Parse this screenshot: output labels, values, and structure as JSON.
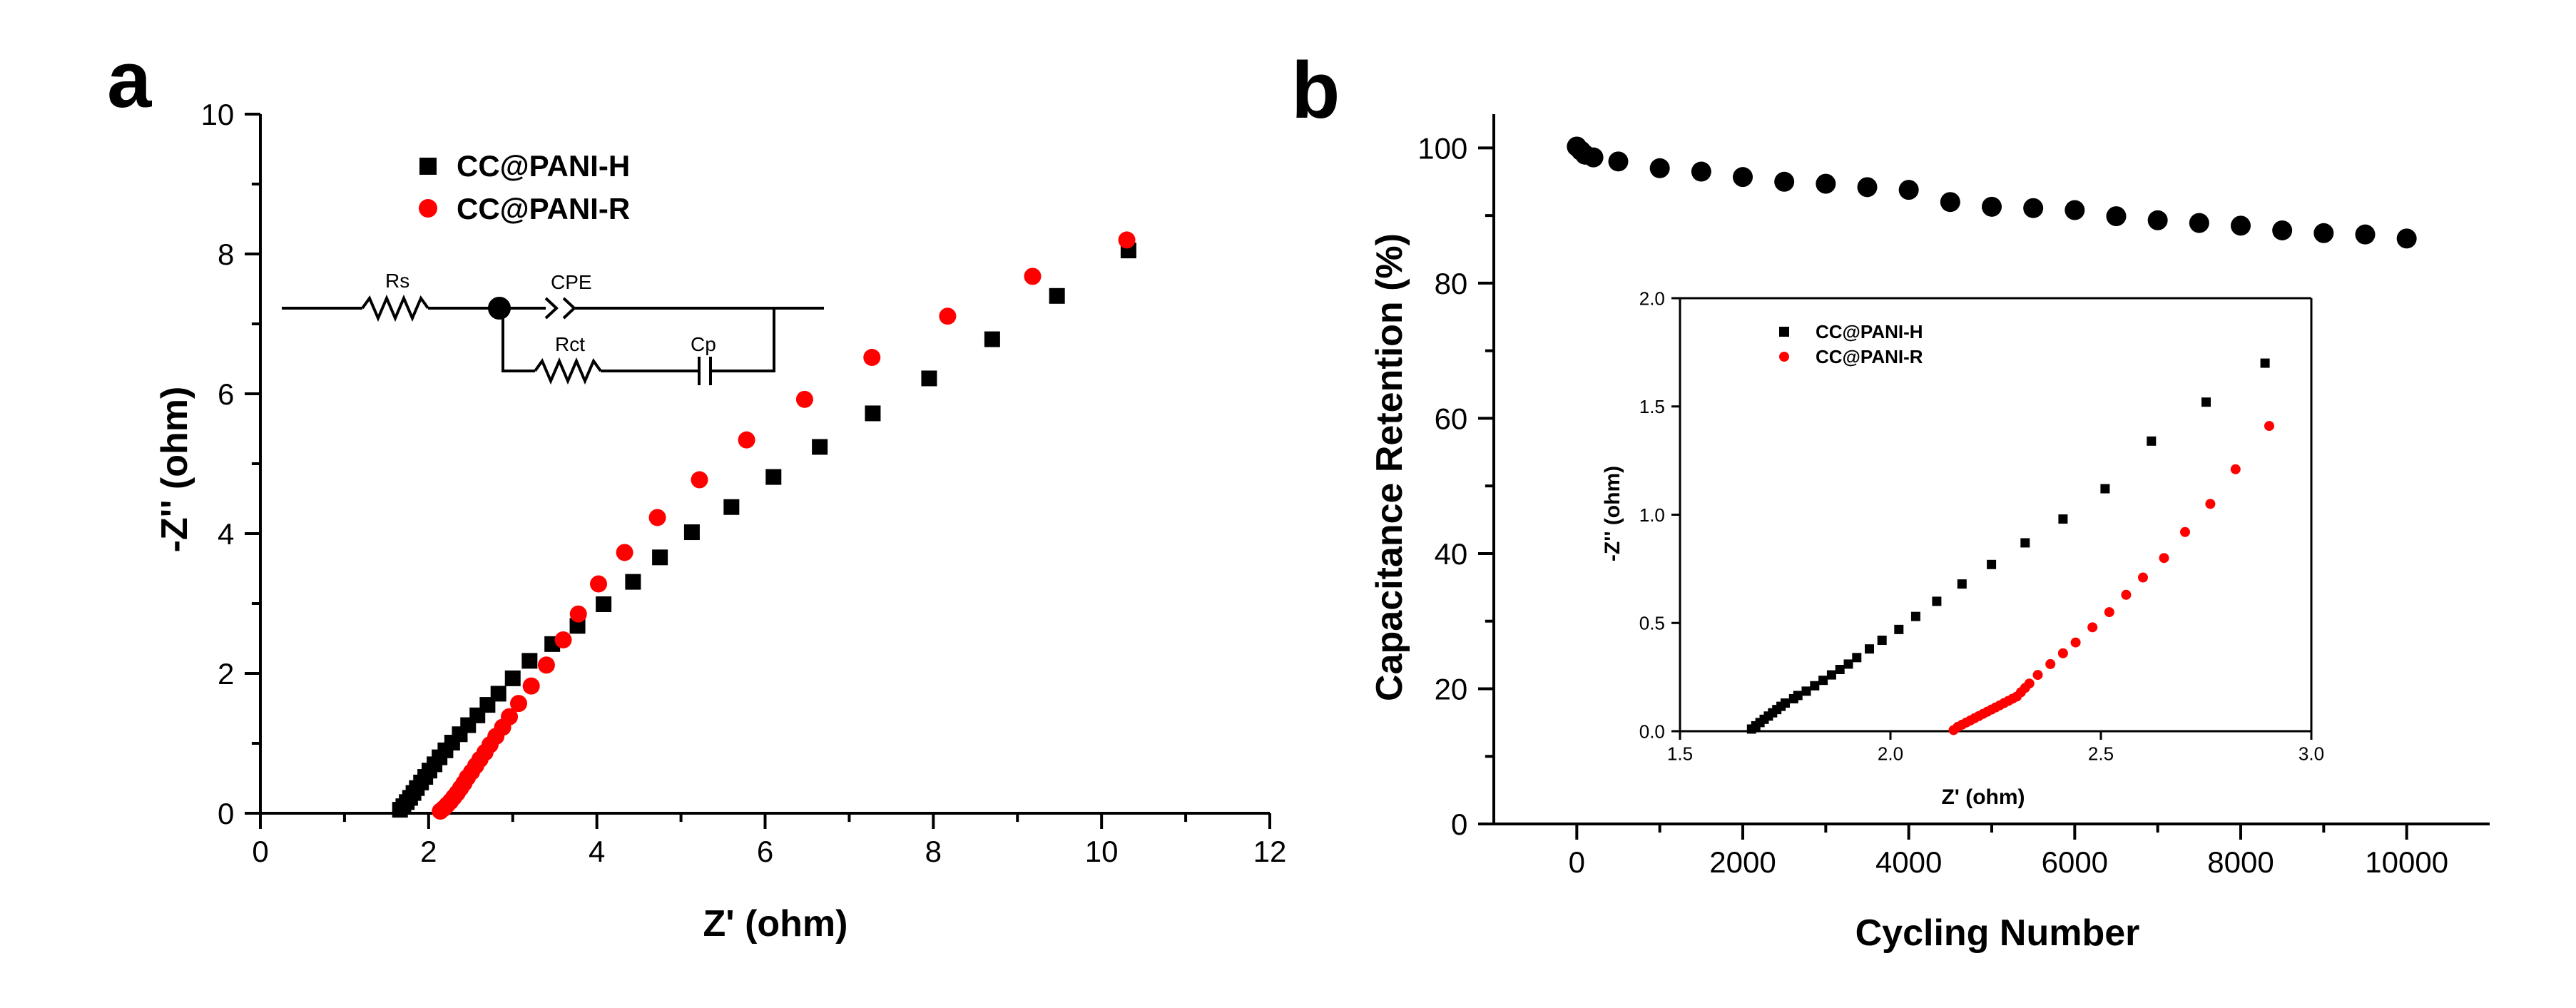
{
  "chart_data": [
    {
      "panel": "a",
      "type": "scatter",
      "xlabel": "Z' (ohm)",
      "ylabel": "-Z'' (ohm)",
      "xlim": [
        0,
        12
      ],
      "ylim": [
        0,
        10
      ],
      "xticks": [
        "0",
        "2",
        "4",
        "6",
        "8",
        "10",
        "12"
      ],
      "yticks": [
        "0",
        "2",
        "4",
        "6",
        "8",
        "10"
      ],
      "legend_position": "top-left",
      "circuit_labels": [
        "Rs",
        "CPE",
        "Rct",
        "Cp"
      ],
      "series": [
        {
          "name": "CC@PANI-H",
          "marker": "square",
          "color": "#000000",
          "x": [
            1.66,
            1.7,
            1.74,
            1.78,
            1.82,
            1.86,
            1.91,
            1.96,
            2.01,
            2.07,
            2.13,
            2.2,
            2.28,
            2.37,
            2.47,
            2.58,
            2.7,
            2.83,
            3.0,
            3.2,
            3.47,
            3.77,
            4.08,
            4.43,
            4.75,
            5.13,
            5.6,
            6.1,
            6.65,
            7.28,
            7.95,
            8.7,
            9.47,
            10.32
          ],
          "y": [
            0.05,
            0.1,
            0.16,
            0.22,
            0.29,
            0.36,
            0.44,
            0.52,
            0.61,
            0.7,
            0.8,
            0.9,
            1.01,
            1.13,
            1.26,
            1.4,
            1.55,
            1.71,
            1.93,
            2.18,
            2.42,
            2.68,
            2.99,
            3.31,
            3.66,
            4.02,
            4.38,
            4.81,
            5.24,
            5.72,
            6.22,
            6.78,
            7.4,
            8.05
          ]
        },
        {
          "name": "CC@PANI-R",
          "marker": "circle",
          "color": "#ff0000",
          "x": [
            2.14,
            2.18,
            2.22,
            2.26,
            2.3,
            2.34,
            2.38,
            2.42,
            2.46,
            2.51,
            2.56,
            2.61,
            2.67,
            2.73,
            2.8,
            2.88,
            2.96,
            3.07,
            3.22,
            3.4,
            3.6,
            3.78,
            4.02,
            4.33,
            4.72,
            5.22,
            5.78,
            6.47,
            7.27,
            8.17,
            9.18,
            10.3
          ],
          "y": [
            0.03,
            0.07,
            0.12,
            0.17,
            0.23,
            0.29,
            0.36,
            0.43,
            0.51,
            0.59,
            0.68,
            0.77,
            0.87,
            0.98,
            1.1,
            1.23,
            1.38,
            1.57,
            1.82,
            2.12,
            2.48,
            2.85,
            3.28,
            3.73,
            4.23,
            4.77,
            5.34,
            5.92,
            6.52,
            7.11,
            7.68,
            8.2
          ]
        }
      ]
    },
    {
      "panel": "b",
      "type": "scatter",
      "xlabel": "Cycling Number",
      "ylabel": "Capacitance Retention (%)",
      "xlim": [
        -1000,
        11000
      ],
      "ylim": [
        0,
        105
      ],
      "xticks": [
        "0",
        "2000",
        "4000",
        "6000",
        "8000",
        "10000"
      ],
      "yticks": [
        "0",
        "20",
        "40",
        "60",
        "80",
        "100"
      ],
      "series": [
        {
          "name": "Capacitance Retention",
          "marker": "circle",
          "color": "#000000",
          "x": [
            0,
            50,
            100,
            200,
            500,
            1000,
            1500,
            2000,
            2500,
            3000,
            3500,
            4000,
            4500,
            5000,
            5500,
            6000,
            6500,
            7000,
            7500,
            8000,
            8500,
            9000,
            9500,
            10000
          ],
          "y": [
            100.2,
            99.6,
            99.0,
            98.6,
            98.0,
            97.0,
            96.5,
            95.7,
            95.0,
            94.7,
            94.2,
            93.8,
            92.0,
            91.3,
            91.1,
            90.8,
            89.9,
            89.3,
            88.9,
            88.5,
            87.8,
            87.4,
            87.2,
            86.6
          ]
        }
      ],
      "inset": {
        "type": "scatter",
        "xlabel": "Z' (ohm)",
        "ylabel": "-Z'' (ohm)",
        "xlim": [
          1.5,
          3.0
        ],
        "ylim": [
          0,
          2.0
        ],
        "xticks": [
          "1.5",
          "2.0",
          "2.5",
          "3.0"
        ],
        "yticks": [
          "0.0",
          "0.5",
          "1.0",
          "1.5",
          "2.0"
        ],
        "legend_position": "top-left",
        "series": [
          {
            "name": "CC@PANI-H",
            "marker": "square",
            "color": "#000000",
            "x": [
              1.67,
              1.68,
              1.69,
              1.7,
              1.71,
              1.72,
              1.73,
              1.74,
              1.75,
              1.77,
              1.78,
              1.8,
              1.82,
              1.84,
              1.86,
              1.88,
              1.9,
              1.92,
              1.95,
              1.98,
              2.02,
              2.06,
              2.11,
              2.17,
              2.24,
              2.32,
              2.41,
              2.51,
              2.62,
              2.75,
              2.89
            ],
            "y": [
              0.01,
              0.025,
              0.04,
              0.055,
              0.07,
              0.085,
              0.1,
              0.115,
              0.13,
              0.15,
              0.165,
              0.185,
              0.21,
              0.235,
              0.26,
              0.285,
              0.31,
              0.34,
              0.38,
              0.42,
              0.47,
              0.53,
              0.6,
              0.68,
              0.77,
              0.87,
              0.98,
              1.12,
              1.34,
              1.52,
              1.7
            ]
          },
          {
            "name": "CC@PANI-R",
            "marker": "circle",
            "color": "#ff0000",
            "x": [
              2.15,
              2.16,
              2.17,
              2.18,
              2.19,
              2.2,
              2.21,
              2.22,
              2.23,
              2.24,
              2.25,
              2.26,
              2.27,
              2.28,
              2.29,
              2.3,
              2.31,
              2.32,
              2.33,
              2.35,
              2.38,
              2.41,
              2.44,
              2.48,
              2.52,
              2.56,
              2.6,
              2.65,
              2.7,
              2.76,
              2.82,
              2.9
            ],
            "y": [
              0.005,
              0.02,
              0.03,
              0.04,
              0.05,
              0.06,
              0.07,
              0.08,
              0.09,
              0.1,
              0.11,
              0.12,
              0.13,
              0.14,
              0.15,
              0.16,
              0.18,
              0.2,
              0.22,
              0.26,
              0.31,
              0.36,
              0.41,
              0.48,
              0.55,
              0.63,
              0.71,
              0.8,
              0.92,
              1.05,
              1.21,
              1.41
            ]
          }
        ]
      }
    }
  ]
}
